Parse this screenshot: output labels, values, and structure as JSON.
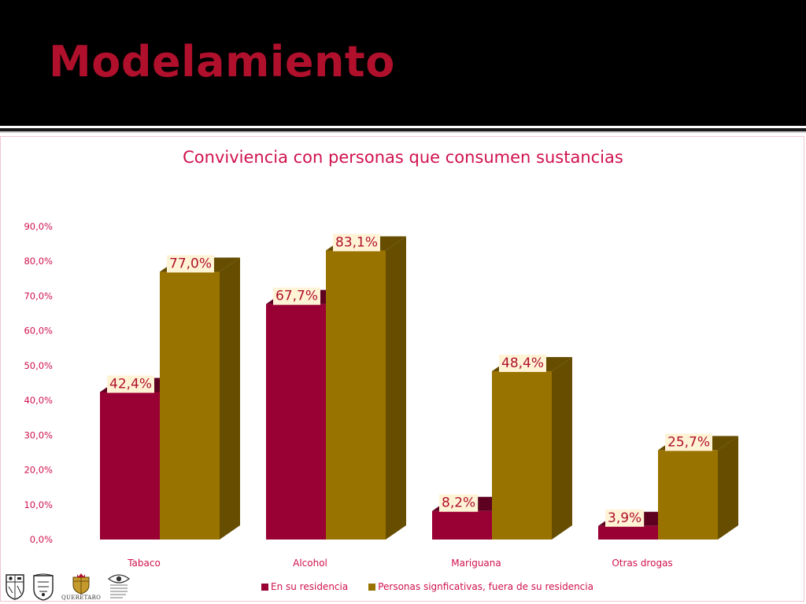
{
  "slide": {
    "title": "Modelamiento"
  },
  "chart_data": {
    "type": "bar",
    "title": "Conviviencia con personas que consumen sustancias",
    "categories": [
      "Tabaco",
      "Alcohol",
      "Mariguana",
      "Otras drogas"
    ],
    "series": [
      {
        "name": "En su residencia",
        "values": [
          42.4,
          67.7,
          8.2,
          3.9
        ],
        "labels": [
          "42,4%",
          "67,7%",
          "8,2%",
          "3,9%"
        ],
        "color": "#990033",
        "side_color": "#5e001f"
      },
      {
        "name": "Personas signficativas, fuera de su residencia",
        "values": [
          77.0,
          83.1,
          48.4,
          25.7
        ],
        "labels": [
          "77,0%",
          "83,1%",
          "48,4%",
          "25,7%"
        ],
        "color": "#997300",
        "side_color": "#664d00"
      }
    ],
    "y_ticks": [
      "0,0%",
      "10,0%",
      "20,0%",
      "30,0%",
      "40,0%",
      "50,0%",
      "60,0%",
      "70,0%",
      "80,0%",
      "90,0%"
    ],
    "ylim": [
      0,
      90
    ],
    "xlabel": "",
    "ylabel": "",
    "grid": false,
    "legend_position": "bottom",
    "bar_style": "3d",
    "text_color": "#d0114d",
    "data_label_background": "#fff3d6"
  },
  "logos": {
    "queretaro_caption": "QUERÉTARO"
  }
}
